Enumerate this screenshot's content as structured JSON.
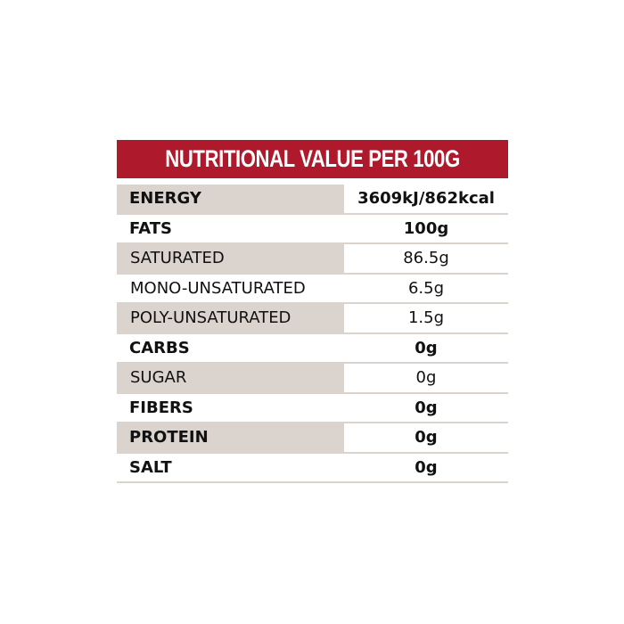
{
  "title": "NUTRITIONAL VALUE PER 100G",
  "rows": [
    {
      "label": "ENERGY",
      "value": "3609kJ/862kcal",
      "bold": true,
      "shaded": true
    },
    {
      "label": "FATS",
      "value": "100g",
      "bold": true,
      "shaded": false
    },
    {
      "label": "SATURATED",
      "value": "86.5g",
      "bold": false,
      "shaded": true
    },
    {
      "label": "MONO-UNSATURATED",
      "value": "6.5g",
      "bold": false,
      "shaded": false
    },
    {
      "label": "POLY-UNSATURATED",
      "value": "1.5g",
      "bold": false,
      "shaded": true
    },
    {
      "label": "CARBS",
      "value": "0g",
      "bold": true,
      "shaded": false
    },
    {
      "label": "SUGAR",
      "value": "0g",
      "bold": false,
      "shaded": true
    },
    {
      "label": "FIBERS",
      "value": "0g",
      "bold": true,
      "shaded": false
    },
    {
      "label": "PROTEIN",
      "value": "0g",
      "bold": true,
      "shaded": true
    },
    {
      "label": "SALT",
      "value": "0g",
      "bold": true,
      "shaded": false
    }
  ],
  "colors": {
    "header": "#AE1A2C",
    "shade": "#DAD3CE"
  }
}
